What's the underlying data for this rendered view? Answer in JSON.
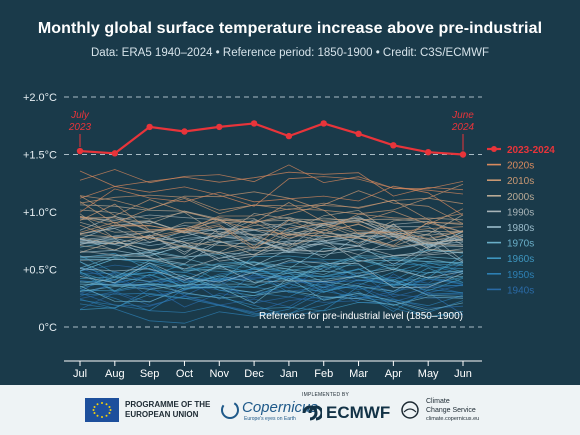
{
  "header": {
    "title": "Monthly global surface temperature increase above pre-industrial",
    "subtitle": "Data: ERA5 1940–2024  •  Reference period: 1850-1900  •  Credit: C3S/ECMWF"
  },
  "chart_data": {
    "type": "line",
    "x": [
      "Jul",
      "Aug",
      "Sep",
      "Oct",
      "Nov",
      "Dec",
      "Jan",
      "Feb",
      "Mar",
      "Apr",
      "May",
      "Jun"
    ],
    "ylim": [
      -0.2,
      2.05
    ],
    "yticks": [
      {
        "value": 2.0,
        "label": "+2.0°C"
      },
      {
        "value": 1.5,
        "label": "+1.5°C"
      },
      {
        "value": 1.0,
        "label": "+1.0°C"
      },
      {
        "value": 0.5,
        "label": "+0.5°C"
      },
      {
        "value": 0.0,
        "label": "0°C"
      }
    ],
    "reference_lines": [
      2.0,
      1.5,
      0.0
    ],
    "reference_label": "Reference for pre-industrial level (1850–1900)",
    "highlight": {
      "name": "2023-2024",
      "color": "#e8343a",
      "values": [
        1.53,
        1.51,
        1.74,
        1.7,
        1.74,
        1.77,
        1.66,
        1.77,
        1.68,
        1.58,
        1.52,
        1.5
      ],
      "annotations": [
        {
          "index": 0,
          "text": "July\n2023"
        },
        {
          "index": 11,
          "text": "June\n2024"
        }
      ]
    },
    "decades": [
      {
        "name": "2020s",
        "color": "#d98a5e",
        "base": 1.18
      },
      {
        "name": "2010s",
        "color": "#c99873",
        "base": 0.98
      },
      {
        "name": "2000s",
        "color": "#b9aa95",
        "base": 0.86
      },
      {
        "name": "1990s",
        "color": "#a8b4b8",
        "base": 0.72
      },
      {
        "name": "1980s",
        "color": "#9bbccb",
        "base": 0.62
      },
      {
        "name": "1970s",
        "color": "#6aafc8",
        "base": 0.44
      },
      {
        "name": "1960s",
        "color": "#3e96bf",
        "base": 0.36
      },
      {
        "name": "1950s",
        "color": "#2d7fb3",
        "base": 0.33
      },
      {
        "name": "1940s",
        "color": "#2a6aa6",
        "base": 0.38
      }
    ]
  },
  "footer": {
    "eu_line1": "PROGRAMME OF THE",
    "eu_line2": "EUROPEAN UNION",
    "copernicus": "Copernicus",
    "copernicus_sub": "Europe's eyes on Earth",
    "implemented_by": "IMPLEMENTED BY",
    "ecmwf": "ECMWF",
    "c3s_line1": "Climate",
    "c3s_line2": "Change Service",
    "c3s_url": "climate.copernicus.eu"
  }
}
